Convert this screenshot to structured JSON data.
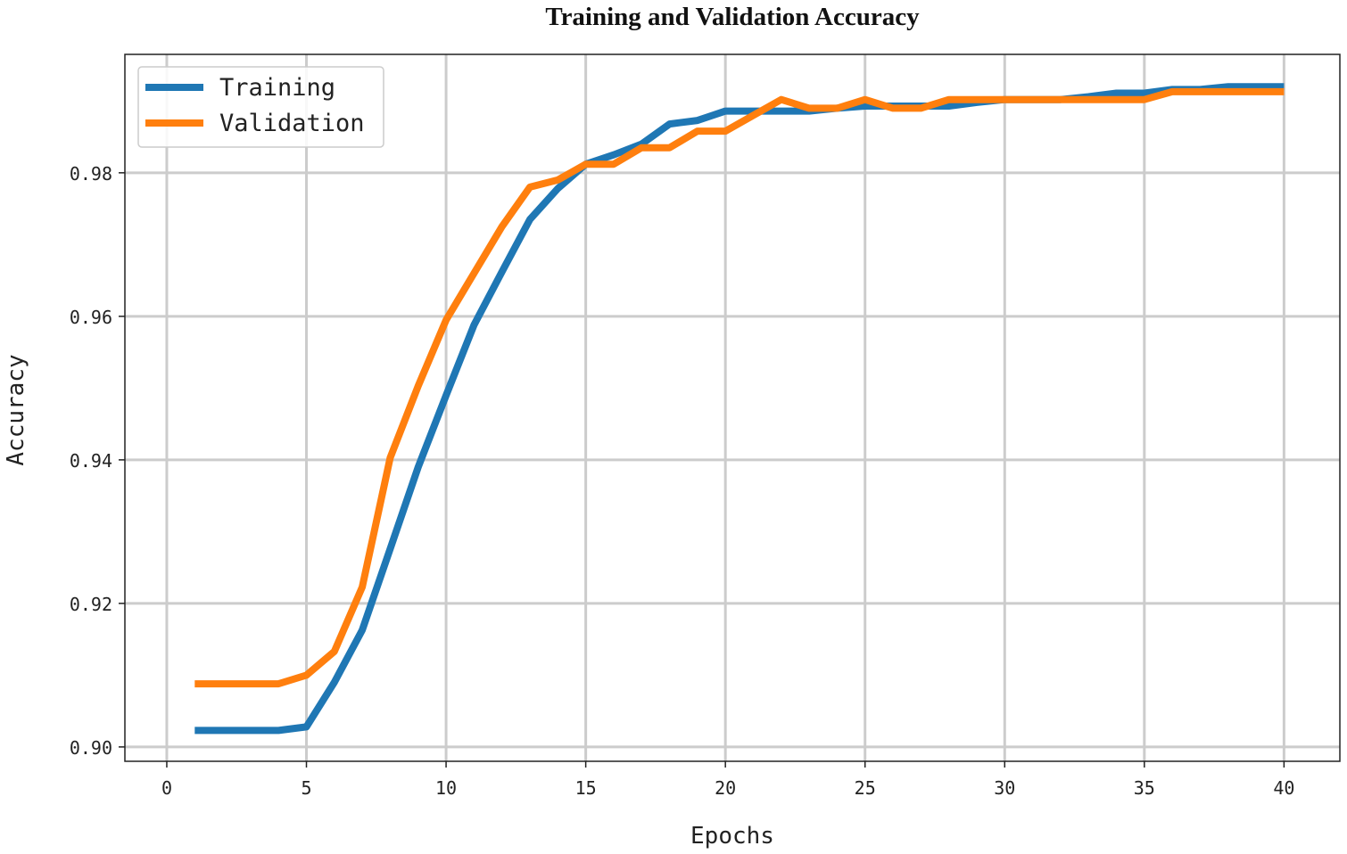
{
  "chart_data": {
    "type": "line",
    "title": "Training and Validation Accuracy",
    "xlabel": "Epochs",
    "ylabel": "Accuracy",
    "xlim": [
      -1.5,
      42
    ],
    "ylim": [
      0.898,
      0.9965
    ],
    "xticks": [
      0,
      5,
      10,
      15,
      20,
      25,
      30,
      35,
      40
    ],
    "xtick_labels": [
      "0",
      "5",
      "10",
      "15",
      "20",
      "25",
      "30",
      "35",
      "40"
    ],
    "yticks": [
      0.9,
      0.92,
      0.94,
      0.96,
      0.98
    ],
    "ytick_labels": [
      "0.90",
      "0.92",
      "0.94",
      "0.96",
      "0.98"
    ],
    "grid": true,
    "legend_position": "top-left",
    "x": [
      1,
      2,
      3,
      4,
      5,
      6,
      7,
      8,
      9,
      10,
      11,
      12,
      13,
      14,
      15,
      16,
      17,
      18,
      19,
      20,
      21,
      22,
      23,
      24,
      25,
      26,
      27,
      28,
      29,
      30,
      31,
      32,
      33,
      34,
      35,
      36,
      37,
      38,
      39,
      40
    ],
    "series": [
      {
        "name": "Training",
        "color": "#1f77b4",
        "values": [
          0.9023,
          0.9023,
          0.9023,
          0.9023,
          0.9028,
          0.909,
          0.9163,
          0.9276,
          0.939,
          0.949,
          0.9588,
          0.9662,
          0.9735,
          0.9778,
          0.9812,
          0.9825,
          0.984,
          0.9868,
          0.9873,
          0.9886,
          0.9886,
          0.9886,
          0.9886,
          0.989,
          0.9893,
          0.9893,
          0.9893,
          0.9893,
          0.9898,
          0.9902,
          0.9902,
          0.9902,
          0.9906,
          0.9911,
          0.9911,
          0.9916,
          0.9916,
          0.992,
          0.992,
          0.992
        ]
      },
      {
        "name": "Validation",
        "color": "#ff7f0e",
        "values": [
          0.9088,
          0.9088,
          0.9088,
          0.9088,
          0.91,
          0.9133,
          0.9223,
          0.9403,
          0.9503,
          0.9595,
          0.966,
          0.9725,
          0.978,
          0.979,
          0.9812,
          0.9812,
          0.9835,
          0.9835,
          0.9858,
          0.9858,
          0.988,
          0.9902,
          0.989,
          0.989,
          0.9902,
          0.989,
          0.989,
          0.9902,
          0.9902,
          0.9902,
          0.9902,
          0.9902,
          0.9902,
          0.9902,
          0.9902,
          0.9913,
          0.9913,
          0.9913,
          0.9913,
          0.9913
        ]
      }
    ]
  }
}
